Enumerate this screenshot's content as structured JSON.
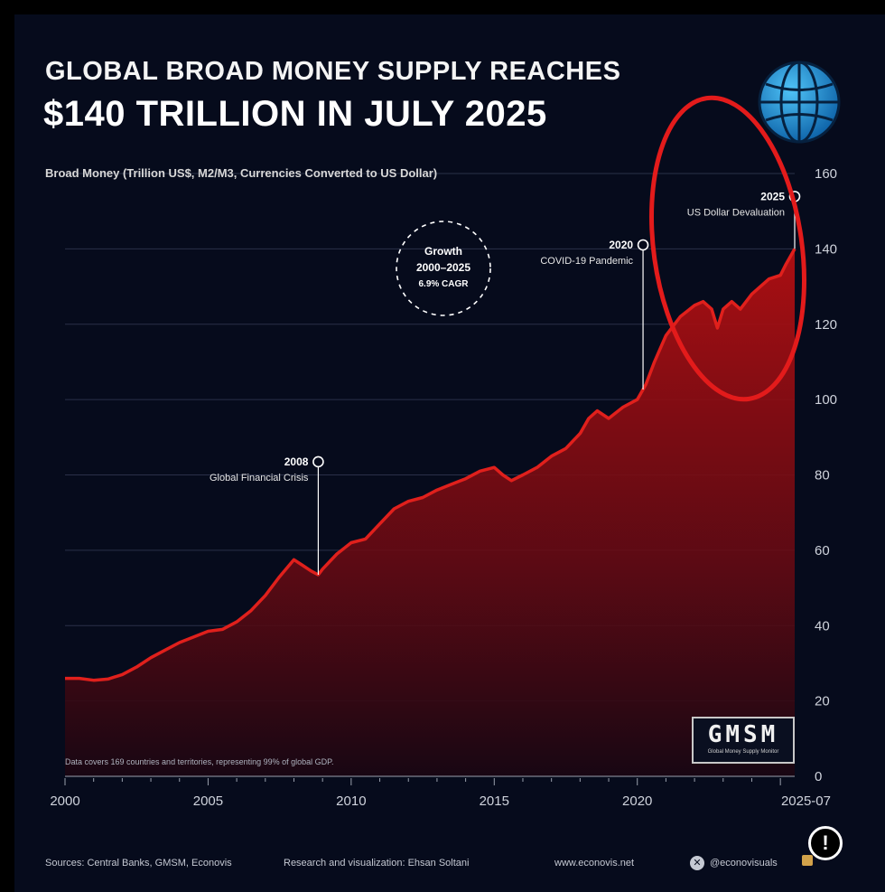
{
  "title_line1": "GLOBAL BROAD MONEY SUPPLY REACHES",
  "title_line2": "$140 TRILLION IN JULY 2025",
  "subtitle": "Broad Money (Trillion US$, M2/M3, Currencies Converted to US Dollar)",
  "note": "Data covers 169 countries and territories, representing 99% of global GDP.",
  "growth": {
    "line1": "Growth",
    "line2": "2000–2025",
    "line3": "6.9% CAGR"
  },
  "annotations": [
    {
      "year": "2008",
      "text": "Global Financial Crisis",
      "x": 2008.85
    },
    {
      "year": "2020",
      "text": "COVID-19 Pandemic",
      "x": 2020.2
    },
    {
      "year": "2025",
      "text": "US Dollar Devaluation",
      "x": 2025.5
    }
  ],
  "gmsm": {
    "big": "GMSM",
    "small": "Global Money Supply Monitor"
  },
  "footer": {
    "sources": "Sources: Central Banks, GMSM, Econovis",
    "credit": "Research and visualization: Ehsan Soltani",
    "site": "www.econovis.net",
    "handle": "@econovisuals"
  },
  "colors": {
    "background": "#060b1c",
    "line": "#e0201c",
    "fill": "#b30f12",
    "highlight_ellipse": "#e31b1b"
  },
  "icons": [
    "globe-icon",
    "x-logo-icon",
    "info-icon",
    "lock-icon"
  ],
  "chart_data": {
    "type": "area",
    "title": "GLOBAL BROAD MONEY SUPPLY REACHES $140 TRILLION IN JULY 2025",
    "ylabel": "Broad Money (Trillion US$, M2/M3, Currencies Converted to US Dollar)",
    "xlim": [
      2000,
      2025.5
    ],
    "ylim": [
      0,
      160
    ],
    "x_ticks": [
      2000,
      2005,
      2010,
      2015,
      2020,
      2025.5
    ],
    "x_tick_labels": [
      "2000",
      "2005",
      "2010",
      "2015",
      "2020",
      "2025-07"
    ],
    "y_ticks": [
      0,
      20,
      40,
      60,
      80,
      100,
      120,
      140,
      160
    ],
    "y_tick_labels": [
      "0",
      "20",
      "40",
      "60",
      "80",
      "100",
      "120",
      "140",
      "160"
    ],
    "grid": true,
    "series": [
      {
        "x": [
          2000,
          2000.5,
          2001,
          2001.5,
          2002,
          2002.5,
          2003,
          2003.5,
          2004,
          2004.5,
          2005,
          2005.5,
          2006,
          2006.5,
          2007,
          2007.5,
          2008,
          2008.3,
          2008.6,
          2008.85,
          2009,
          2009.5,
          2010,
          2010.5,
          2011,
          2011.5,
          2012,
          2012.5,
          2013,
          2013.5,
          2014,
          2014.5,
          2015,
          2015.3,
          2015.6,
          2016,
          2016.5,
          2017,
          2017.5,
          2018,
          2018.3,
          2018.6,
          2019,
          2019.5,
          2020,
          2020.3,
          2020.6,
          2021,
          2021.5,
          2022,
          2022.3,
          2022.6,
          2022.8,
          2023,
          2023.3,
          2023.6,
          2024,
          2024.3,
          2024.6,
          2025,
          2025.2,
          2025.5
        ],
        "values": [
          26,
          26,
          25.5,
          25.8,
          27,
          29,
          31.5,
          33.5,
          35.5,
          37,
          38.5,
          39,
          41,
          44,
          48,
          53,
          57.5,
          56,
          54.5,
          53.5,
          55,
          59,
          62,
          63,
          67,
          71,
          73,
          74,
          76,
          77.5,
          79,
          81,
          82,
          80,
          78.5,
          80,
          82,
          85,
          87,
          91,
          95,
          97,
          95,
          98,
          100,
          104,
          110,
          117,
          122,
          125,
          126,
          124,
          119,
          124,
          126,
          124,
          128,
          130,
          132,
          133,
          136,
          140
        ]
      }
    ]
  }
}
